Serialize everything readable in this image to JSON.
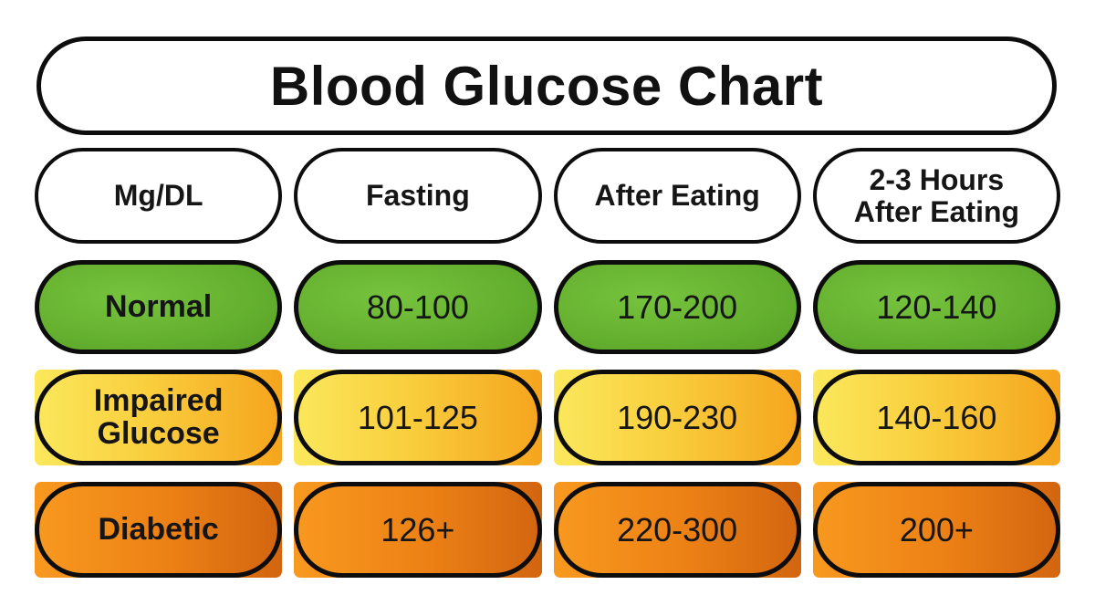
{
  "title": "Blood Glucose Chart",
  "header": {
    "cells": [
      {
        "line1": "Mg/DL"
      },
      {
        "line1": "Fasting"
      },
      {
        "line1": "After Eating"
      },
      {
        "line1": "2-3 Hours",
        "line2": "After Eating"
      }
    ]
  },
  "rows": [
    {
      "name": "normal",
      "label_line1": "Normal",
      "values": [
        "80-100",
        "170-200",
        "120-140"
      ]
    },
    {
      "name": "impaired-glucose",
      "label_line1": "Impaired",
      "label_line2": "Glucose",
      "values": [
        "101-125",
        "190-230",
        "140-160"
      ]
    },
    {
      "name": "diabetic",
      "label_line1": "Diabetic",
      "values": [
        "126+",
        "220-300",
        "200+"
      ]
    }
  ],
  "colors": {
    "border": "#0d0d0d",
    "normal_green_light": "#76c33e",
    "normal_green_dark": "#569f25",
    "impaired_yellow_left": "#fbe85c",
    "impaired_orange_right": "#f5a41d",
    "diabetic_orange_left": "#f8991f",
    "diabetic_orange_right": "#d2650f",
    "background": "#ffffff"
  },
  "chart_data": {
    "type": "table",
    "title": "Blood Glucose Chart",
    "unit": "Mg/DL",
    "columns": [
      "Mg/DL",
      "Fasting",
      "After Eating",
      "2-3 Hours After Eating"
    ],
    "rows": [
      {
        "category": "Normal",
        "fasting": "80-100",
        "after_eating": "170-200",
        "hours_2_3_after_eating": "120-140"
      },
      {
        "category": "Impaired Glucose",
        "fasting": "101-125",
        "after_eating": "190-230",
        "hours_2_3_after_eating": "140-160"
      },
      {
        "category": "Diabetic",
        "fasting": "126+",
        "after_eating": "220-300",
        "hours_2_3_after_eating": "200+"
      }
    ]
  }
}
